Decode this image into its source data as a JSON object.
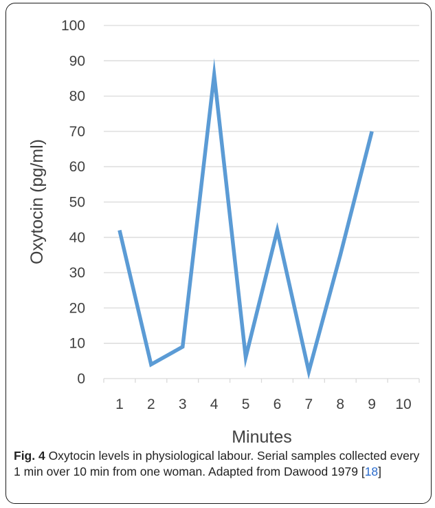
{
  "chart_data": {
    "type": "line",
    "title": "",
    "xlabel": "Minutes",
    "ylabel": "Oxytocin (pg/ml)",
    "categories": [
      "1",
      "2",
      "3",
      "4",
      "5",
      "6",
      "7",
      "8",
      "9",
      "10"
    ],
    "series": [
      {
        "values": [
          42,
          4,
          9,
          86,
          6,
          42,
          2,
          35,
          70,
          null
        ]
      }
    ],
    "ylim": [
      0,
      100
    ],
    "yticks": [
      "0",
      "10",
      "20",
      "30",
      "40",
      "50",
      "60",
      "70",
      "80",
      "90",
      "100"
    ],
    "grid": true,
    "legend": "none",
    "line_color": "#5b9bd5",
    "grid_color": "#d9d9d9"
  },
  "caption": {
    "label": "Fig. 4",
    "text_before_ref": " Oxytocin levels in physiological labour. Serial samples collected every 1 min over 10 min from one woman. Adapted from Dawood 1979 [",
    "ref": "18",
    "text_after_ref": "]"
  }
}
